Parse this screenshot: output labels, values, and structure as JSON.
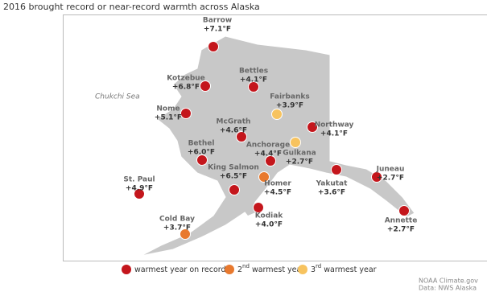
{
  "title": "2016 brought record or near-record warmth across Alaska",
  "sea_label": "Chukchi Sea",
  "stations": [
    {
      "name": "Barrow",
      "anomaly": "+7.1°F",
      "color": "#c4161c"
    },
    {
      "name": "Kotzebue",
      "anomaly": "+6.8°F",
      "color": "#c4161c"
    },
    {
      "name": "Bettles",
      "anomaly": "+4.1°F",
      "color": "#c4161c"
    },
    {
      "name": "Fairbanks",
      "anomaly": "+3.9°F",
      "color": "#f7c35f"
    },
    {
      "name": "Nome",
      "anomaly": "+5.1°F",
      "color": "#c4161c"
    },
    {
      "name": "McGrath",
      "anomaly": "+4.6°F",
      "color": "#c4161c"
    },
    {
      "name": "Northway",
      "anomaly": "+4.1°F",
      "color": "#c4161c"
    },
    {
      "name": "Bethel",
      "anomaly": "+6.0°F",
      "color": "#c4161c"
    },
    {
      "name": "Anchorage",
      "anomaly": "+4.4°F",
      "color": "#c4161c"
    },
    {
      "name": "Gulkana",
      "anomaly": "+2.7°F",
      "color": "#f7c35f"
    },
    {
      "name": "King Salmon",
      "anomaly": "+6.5°F",
      "color": "#c4161c"
    },
    {
      "name": "Homer",
      "anomaly": "+4.5°F",
      "color": "#e8792e"
    },
    {
      "name": "Yakutat",
      "anomaly": "+3.6°F",
      "color": "#c4161c"
    },
    {
      "name": "Juneau",
      "anomaly": "+2.7°F",
      "color": "#c4161c"
    },
    {
      "name": "St. Paul",
      "anomaly": "+4.9°F",
      "color": "#c4161c"
    },
    {
      "name": "Kodiak",
      "anomaly": "+4.0°F",
      "color": "#c4161c"
    },
    {
      "name": "Cold Bay",
      "anomaly": "+3.7°F",
      "color": "#e8792e"
    },
    {
      "name": "Annette",
      "anomaly": "+2.7°F",
      "color": "#c4161c"
    }
  ],
  "legend": [
    {
      "text": "warmest year on record",
      "color": "#c4161c"
    },
    {
      "number": "2",
      "suffix": "nd",
      "text": "warmest year",
      "color": "#e8792e"
    },
    {
      "number": "3",
      "suffix": "rd",
      "text": "warmest year",
      "color": "#f7c35f"
    }
  ],
  "credits": [
    "NOAA Climate.gov",
    "Data: NWS Alaska"
  ]
}
